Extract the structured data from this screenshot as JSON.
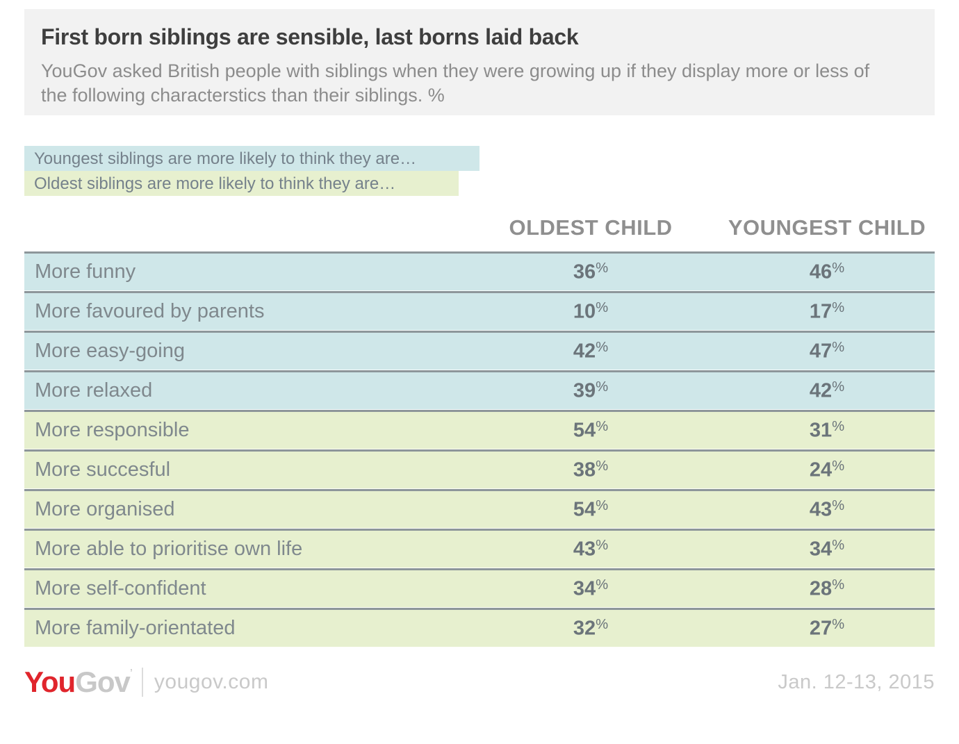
{
  "header": {
    "title": "First born siblings are sensible, last borns laid back",
    "subtitle": "YouGov asked British people with siblings when they were growing up if they display more or less of the following characterstics than their siblings. %"
  },
  "legend": {
    "youngest": "Youngest siblings are more likely to think they are…",
    "oldest": "Oldest siblings are more likely to think they are…"
  },
  "columns": {
    "oldest": "OLDEST CHILD",
    "youngest": "YOUNGEST CHILD"
  },
  "table": {
    "percent_sign": "%",
    "rows": [
      {
        "label": "More funny",
        "oldest": "36",
        "youngest": "46",
        "group": "youngest"
      },
      {
        "label": "More favoured by parents",
        "oldest": "10",
        "youngest": "17",
        "group": "youngest"
      },
      {
        "label": "More easy-going",
        "oldest": "42",
        "youngest": "47",
        "group": "youngest"
      },
      {
        "label": "More relaxed",
        "oldest": "39",
        "youngest": "42",
        "group": "youngest"
      },
      {
        "label": "More responsible",
        "oldest": "54",
        "youngest": "31",
        "group": "oldest"
      },
      {
        "label": "More succesful",
        "oldest": "38",
        "youngest": "24",
        "group": "oldest"
      },
      {
        "label": "More organised",
        "oldest": "54",
        "youngest": "43",
        "group": "oldest"
      },
      {
        "label": "More able to prioritise own life",
        "oldest": "43",
        "youngest": "34",
        "group": "oldest"
      },
      {
        "label": "More self-confident",
        "oldest": "34",
        "youngest": "28",
        "group": "oldest"
      },
      {
        "label": "More family-orientated",
        "oldest": "32",
        "youngest": "27",
        "group": "oldest"
      }
    ]
  },
  "footer": {
    "logo_you": "You",
    "logo_gov": "Gov",
    "logo_mark": "’",
    "site": "yougov.com",
    "date": "Jan. 12-13, 2015"
  },
  "colors": {
    "youngest_band": "#cfe7e9",
    "oldest_band": "#e7f0cf",
    "accent_red": "#e0252c",
    "separator": "#8d969a"
  },
  "chart_data": {
    "type": "table",
    "title": "First born siblings are sensible, last borns laid back",
    "subtitle": "YouGov asked British people with siblings when they were growing up if they display more or less of the following characterstics than their siblings. %",
    "categories": [
      "More funny",
      "More favoured by parents",
      "More easy-going",
      "More relaxed",
      "More responsible",
      "More succesful",
      "More organised",
      "More able to prioritise own life",
      "More self-confident",
      "More family-orientated"
    ],
    "series": [
      {
        "name": "OLDEST CHILD",
        "values": [
          36,
          10,
          42,
          39,
          54,
          38,
          54,
          43,
          34,
          32
        ]
      },
      {
        "name": "YOUNGEST CHILD",
        "values": [
          46,
          17,
          47,
          42,
          31,
          24,
          43,
          34,
          28,
          27
        ]
      }
    ],
    "units": "%",
    "row_groups": [
      "youngest",
      "youngest",
      "youngest",
      "youngest",
      "oldest",
      "oldest",
      "oldest",
      "oldest",
      "oldest",
      "oldest"
    ],
    "legend_entries": [
      {
        "label": "Youngest siblings are more likely to think they are…",
        "color": "#cfe7e9"
      },
      {
        "label": "Oldest siblings are more likely to think they are…",
        "color": "#e7f0cf"
      }
    ],
    "source": "yougov.com",
    "date": "Jan. 12-13, 2015"
  }
}
